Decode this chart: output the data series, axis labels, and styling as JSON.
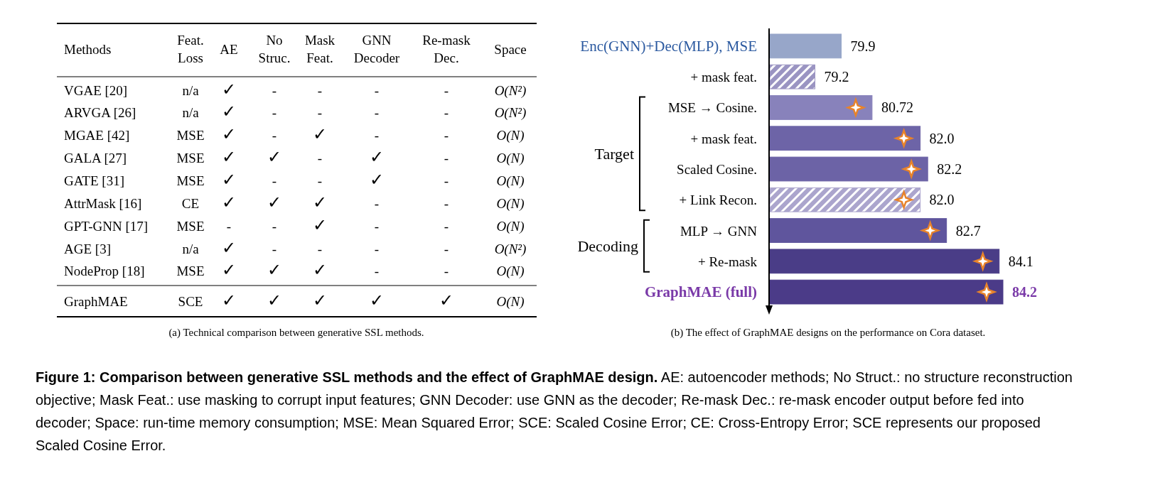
{
  "chart_data": [
    {
      "type": "other",
      "ylabel": "Methods",
      "categories": [
        "Feat. Loss",
        "AE",
        "No Struc.",
        "Mask Feat.",
        "GNN Decoder",
        "Re-mask Dec.",
        "Space"
      ],
      "y_categories": [
        "VGAE [20]",
        "ARVGA [26]",
        "MGAE [42]",
        "GALA [27]",
        "GATE [31]",
        "AttrMask [16]",
        "GPT-GNN [17]",
        "AGE [3]",
        "NodeProp [18]",
        "GraphMAE"
      ],
      "cell_labels": [
        [
          "n/a",
          "✓",
          "-",
          "-",
          "-",
          "-",
          "O(N²)"
        ],
        [
          "n/a",
          "✓",
          "-",
          "-",
          "-",
          "-",
          "O(N²)"
        ],
        [
          "MSE",
          "✓",
          "-",
          "✓",
          "-",
          "-",
          "O(N)"
        ],
        [
          "MSE",
          "✓",
          "✓",
          "-",
          "✓",
          "-",
          "O(N)"
        ],
        [
          "MSE",
          "✓",
          "-",
          "-",
          "✓",
          "-",
          "O(N)"
        ],
        [
          "CE",
          "✓",
          "✓",
          "✓",
          "-",
          "-",
          "O(N)"
        ],
        [
          "MSE",
          "-",
          "-",
          "✓",
          "-",
          "-",
          "O(N)"
        ],
        [
          "n/a",
          "✓",
          "-",
          "-",
          "-",
          "-",
          "O(N²)"
        ],
        [
          "MSE",
          "✓",
          "✓",
          "✓",
          "-",
          "-",
          "O(N)"
        ],
        [
          "SCE",
          "✓",
          "✓",
          "✓",
          "✓",
          "✓",
          "O(N)"
        ]
      ],
      "annotations": [
        "(a) Technical comparison between generative SSL methods."
      ]
    },
    {
      "type": "bar",
      "orientation": "horizontal",
      "categories": [
        "Enc(GNN)+Dec(MLP), MSE",
        "+ mask feat.",
        "MSE → Cosine.",
        "+ mask feat.",
        "Scaled Cosine.",
        "+ Link Recon.",
        "MLP → GNN",
        "+ Re-mask",
        "GraphMAE (full)"
      ],
      "values": [
        79.9,
        79.2,
        80.72,
        82.0,
        82.2,
        82.0,
        82.7,
        84.1,
        84.2
      ],
      "value_labels": [
        "79.9",
        "79.2",
        "80.72",
        "82.0",
        "82.2",
        "82.0",
        "82.7",
        "84.1",
        "84.2"
      ],
      "colors": [
        "#97a6c9",
        "#9a94c2",
        "#8882bb",
        "#6d64a7",
        "#6c63a6",
        "#aba5cd",
        "#5f559d",
        "#4a3d87",
        "#4b3b88"
      ],
      "xlim": [
        78,
        84.2
      ],
      "tick_labels": "y",
      "annotations": [
        "Target",
        "Decoding",
        "(b) The effect of GraphMAE designs on the performance on Cora dataset.",
        "Figure 1: Comparison between generative SSL methods and the effect of GraphMAE design.",
        "AE: autoencoder methods; No Struct.: no structure reconstruction objective; Mask Feat.: use masking to corrupt input features; GNN Decoder: use GNN as the decoder; Re-mask Dec.: re-mask encoder output before fed into decoder; Space: run-time memory consumption; MSE: Mean Squared Error; SCE: Scaled Cosine Error; CE: Cross-Entropy Error; SCE represents our proposed Scaled Cosine Error."
      ]
    }
  ]
}
